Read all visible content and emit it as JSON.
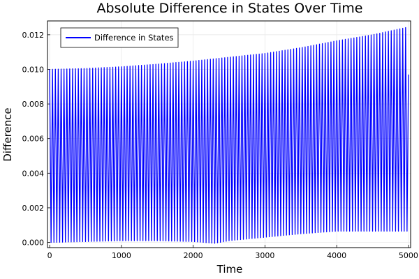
{
  "chart_data": {
    "type": "line",
    "title": "Absolute Difference in States Over Time",
    "xlabel": "Time",
    "ylabel": "Difference",
    "xlim": [
      -30,
      5030
    ],
    "ylim": [
      -0.0003,
      0.0128
    ],
    "x_ticks": [
      0,
      1000,
      2000,
      3000,
      4000,
      5000
    ],
    "x_tick_labels": [
      "0",
      "1000",
      "2000",
      "3000",
      "4000",
      "5000"
    ],
    "y_ticks": [
      0,
      0.002,
      0.004,
      0.006,
      0.008,
      0.01,
      0.012
    ],
    "y_tick_labels": [
      "0.000",
      "0.002",
      "0.004",
      "0.006",
      "0.008",
      "0.010",
      "0.012"
    ],
    "grid": true,
    "legend": "top-left",
    "series": [
      {
        "name": "Difference in States",
        "color": "#0000ff",
        "oscillation_period": 40,
        "x_end": 5000,
        "end_value": 0.0097,
        "upper_envelope": {
          "x": [
            0,
            500,
            1000,
            1500,
            2000,
            2500,
            3000,
            3500,
            4000,
            4500,
            5000
          ],
          "y": [
            0.01,
            0.01005,
            0.01015,
            0.0103,
            0.01048,
            0.0107,
            0.01092,
            0.01125,
            0.01165,
            0.012,
            0.01245
          ]
        },
        "lower_envelope": {
          "x": [
            0,
            500,
            1000,
            1500,
            2000,
            2300,
            2500,
            3000,
            3500,
            4000,
            4500,
            5000
          ],
          "y": [
            0.0,
            5e-05,
            0.0001,
            0.0001,
            5e-05,
            -5e-05,
            0.0001,
            0.0003,
            0.0005,
            0.00065,
            0.00065,
            0.00065
          ]
        }
      }
    ]
  }
}
